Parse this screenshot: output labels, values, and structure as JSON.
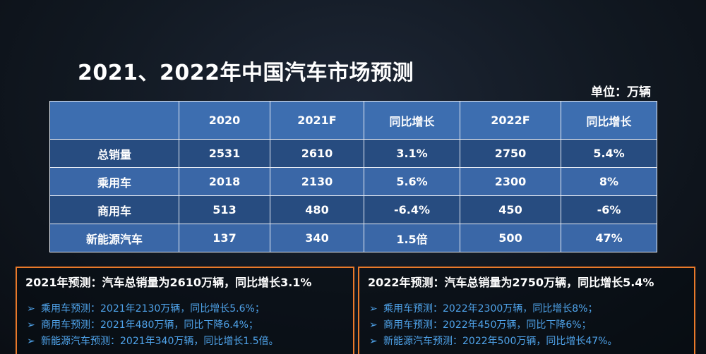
{
  "title": "2021、2022年中国汽车市场预测",
  "unit": "单位：万辆",
  "table": {
    "headers": [
      "",
      "2020",
      "2021F",
      "同比增长",
      "2022F",
      "同比增长"
    ],
    "rows": [
      [
        "总销量",
        "2531",
        "2610",
        "3.1%",
        "2750",
        "5.4%"
      ],
      [
        "乘用车",
        "2018",
        "2130",
        "5.6%",
        "2300",
        "8%"
      ],
      [
        "商用车",
        "513",
        "480",
        "-6.4%",
        "450",
        "-6%"
      ],
      [
        "新能源汽车",
        "137",
        "340",
        "1.5倍",
        "500",
        "47%"
      ]
    ]
  },
  "forecast_2021": {
    "heading": "2021年预测：汽车总销量为2610万辆，同比增长3.1%",
    "items": [
      "乘用车预测：2021年2130万辆，同比增长5.6%；",
      "商用车预测：2021年480万辆，同比下降6.4%；",
      "新能源汽车预测：2021年340万辆，同比增长1.5倍。"
    ]
  },
  "forecast_2022": {
    "heading": "2022年预测：汽车总销量为2750万辆，同比增长5.4%",
    "items": [
      "乘用车预测：2022年2300万辆，同比增长8%；",
      "商用车预测：2022年450万辆，同比下降6%；",
      "新能源汽车预测：2022年500万辆，同比增长47%。"
    ]
  },
  "bullet_glyph": "➢",
  "colors": {
    "header_fill": "#3d6eb0",
    "row_dark": "#274c80",
    "row_light": "#3a67a7",
    "box_border": "#e9792a",
    "bullet_text": "#4fa3ea"
  }
}
